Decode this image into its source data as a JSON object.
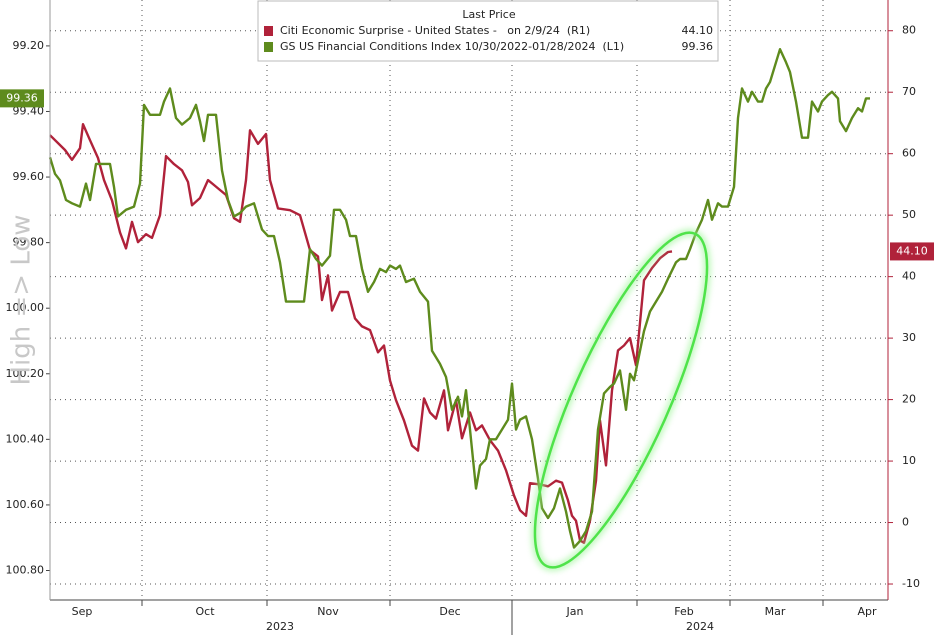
{
  "chart_data": {
    "type": "line",
    "y_label": "High => Low",
    "legend_title": "Last Price",
    "grid": true,
    "xlim": [
      0,
      83.8
    ],
    "xticks": [
      {
        "value": 3.2,
        "label": "Sep"
      },
      {
        "value": 15.5,
        "label": "Oct"
      },
      {
        "value": 27.8,
        "label": "Nov"
      },
      {
        "value": 40,
        "label": "Dec"
      },
      {
        "value": 52.5,
        "label": "Jan"
      },
      {
        "value": 63.4,
        "label": "Feb"
      },
      {
        "value": 72.5,
        "label": "Mar"
      },
      {
        "value": 81.7,
        "label": "Apr"
      }
    ],
    "xgrid": [
      9.2,
      21.7,
      34,
      46.2,
      58.7,
      68,
      77.3
    ],
    "year_ticks": [
      {
        "value": 23,
        "label": "2023"
      },
      {
        "value": 65,
        "label": "2024"
      }
    ],
    "year_split": 46.2,
    "ylim": [
      100.89,
      99.06
    ],
    "yticks": [
      {
        "value": 99.2,
        "label": "99.20"
      },
      {
        "value": 99.4,
        "label": "99.40"
      },
      {
        "value": 99.6,
        "label": "99.60"
      },
      {
        "value": 99.8,
        "label": "99.80"
      },
      {
        "value": 100,
        "label": "100.00"
      },
      {
        "value": 100.2,
        "label": "100.20"
      },
      {
        "value": 100.4,
        "label": "100.40"
      },
      {
        "value": 100.6,
        "label": "100.60"
      },
      {
        "value": 100.8,
        "label": "100.80"
      }
    ],
    "y2lim": [
      -12.6,
      85
    ],
    "y2ticks": [
      -10,
      0,
      10,
      20,
      30,
      40,
      50,
      60,
      70,
      80
    ],
    "series": [
      {
        "name": "Citi Economic Surprise - United States -   on 2/9/24  (R1)",
        "color": "#b0223a",
        "axis": "y2",
        "last_label": "44.10",
        "x": [
          0,
          1.5,
          2.2,
          3,
          3.3,
          4,
          4.8,
          5.4,
          6.2,
          7,
          7.6,
          8.2,
          8.8,
          9.6,
          10.2,
          11,
          11.6,
          12.4,
          13.2,
          13.8,
          14.2,
          15,
          15.8,
          16.4,
          17,
          17.6,
          18.4,
          19,
          19.6,
          20,
          20.8,
          21.6,
          22,
          22.8,
          24,
          25,
          26,
          26.8,
          27.2,
          27.8,
          28.2,
          29,
          29.8,
          30.5,
          31.2,
          32,
          32.8,
          33.4,
          34,
          34.6,
          35.4,
          36.2,
          36.8,
          37.4,
          38,
          38.6,
          39.4,
          39.8,
          40.6,
          41.2,
          42,
          42.6,
          43.2,
          44,
          44.8,
          45.6,
          46.4,
          47,
          47.6,
          48,
          49,
          49.8,
          50.6,
          51.2,
          51.8,
          52.2,
          52.6,
          53,
          53.4,
          54,
          54.6,
          55,
          55.6,
          56.2,
          56.8,
          57.4,
          58,
          58.6,
          59.4,
          60.2,
          61,
          61.8,
          62.2
        ],
        "values": [
          63.0,
          60.6,
          59.0,
          60.9,
          64.8,
          62.2,
          59.3,
          55.7,
          52.4,
          47.2,
          44.6,
          48.9,
          45.6,
          46.9,
          46.3,
          50.0,
          59.6,
          58.3,
          57.3,
          55.4,
          51.6,
          52.8,
          55.7,
          54.9,
          54.1,
          53.3,
          49.5,
          48.9,
          55.7,
          63.8,
          61.6,
          63.2,
          55.7,
          51.1,
          50.8,
          50.0,
          44.3,
          43.3,
          36.2,
          40.2,
          34.5,
          37.5,
          37.5,
          33.2,
          31.9,
          31.3,
          27.7,
          28.8,
          23.1,
          19.9,
          16.6,
          12.5,
          11.7,
          20.2,
          17.9,
          16.9,
          21.5,
          15.0,
          19.9,
          13.7,
          17.9,
          15.0,
          15.8,
          13.4,
          11.7,
          8.5,
          4.4,
          2.0,
          1.1,
          6.4,
          6.2,
          5.9,
          6.8,
          6.5,
          3.6,
          1.1,
          0.3,
          -2.9,
          -3.3,
          0.3,
          6.8,
          16.6,
          9.3,
          21.5,
          28.0,
          28.8,
          30.0,
          25.6,
          39.4,
          41.4,
          43.0,
          44.0,
          44.1
        ]
      },
      {
        "name": "GS US Financial Conditions Index 10/30/2022-01/28/2024  (L1)",
        "color": "#5e8b1d",
        "axis": "y",
        "last_label": "99.36",
        "x": [
          0,
          0.5,
          1,
          1.6,
          2.2,
          3,
          3.6,
          4,
          4.6,
          5.4,
          6,
          6.4,
          6.8,
          7.6,
          8.4,
          9,
          9.4,
          10,
          11,
          11.4,
          12,
          12.6,
          13.2,
          14,
          14.6,
          15,
          15.4,
          15.8,
          16.6,
          17.2,
          17.8,
          18.4,
          19,
          19.6,
          20.4,
          21.2,
          21.8,
          22.4,
          23,
          23.6,
          24.2,
          24.8,
          25.4,
          26,
          26.6,
          27.2,
          28,
          28.4,
          29,
          29.6,
          30,
          30.6,
          31.2,
          31.8,
          32.4,
          33,
          33.6,
          34,
          34.6,
          35,
          35.6,
          36.4,
          37,
          37.8,
          38.2,
          39,
          39.6,
          40.2,
          40.8,
          41.2,
          41.6,
          42.2,
          42.6,
          43,
          43.6,
          44,
          44.6,
          45.2,
          45.8,
          46.2,
          46.6,
          47,
          47.6,
          48.2,
          48.8,
          49.2,
          49.8,
          50.4,
          51,
          51.6,
          52,
          52.4,
          53,
          53.6,
          54.2,
          54.8,
          55.4,
          56,
          56.4,
          57,
          57.6,
          58,
          58.4,
          58.8,
          59.4,
          60,
          60.6,
          61.2,
          61.8,
          62.6,
          63,
          63.6,
          64,
          64.6,
          65.2,
          65.8,
          66.2,
          66.8,
          67.2,
          67.8,
          68.4,
          68.8,
          69.2,
          69.8,
          70.2,
          70.8,
          71.2,
          71.6,
          72,
          72.6,
          73,
          73.6,
          74,
          74.6,
          75.2,
          75.8,
          76.2,
          76.8,
          77.2,
          77.8,
          78.2,
          78.8,
          79,
          79.6,
          80.2,
          80.8,
          81.2,
          81.6,
          82
        ],
        "values": [
          99.54,
          99.59,
          99.61,
          99.67,
          99.68,
          99.69,
          99.62,
          99.67,
          99.56,
          99.56,
          99.56,
          99.63,
          99.72,
          99.7,
          99.69,
          99.62,
          99.38,
          99.41,
          99.41,
          99.37,
          99.33,
          99.42,
          99.44,
          99.42,
          99.38,
          99.43,
          99.49,
          99.41,
          99.41,
          99.58,
          99.67,
          99.72,
          99.71,
          99.69,
          99.68,
          99.76,
          99.78,
          99.78,
          99.86,
          99.98,
          99.98,
          99.98,
          99.98,
          99.82,
          99.85,
          99.87,
          99.84,
          99.7,
          99.7,
          99.73,
          99.78,
          99.78,
          99.88,
          99.95,
          99.92,
          99.88,
          99.89,
          99.87,
          99.88,
          99.87,
          99.92,
          99.91,
          99.95,
          99.98,
          100.13,
          100.17,
          100.21,
          100.31,
          100.27,
          100.33,
          100.25,
          100.43,
          100.55,
          100.48,
          100.46,
          100.4,
          100.4,
          100.37,
          100.34,
          100.23,
          100.37,
          100.34,
          100.33,
          100.4,
          100.52,
          100.61,
          100.64,
          100.61,
          100.55,
          100.62,
          100.68,
          100.73,
          100.71,
          100.68,
          100.62,
          100.37,
          100.26,
          100.24,
          100.23,
          100.19,
          100.31,
          100.2,
          100.22,
          100.16,
          100.07,
          100.01,
          99.98,
          99.95,
          99.91,
          99.86,
          99.85,
          99.85,
          99.82,
          99.77,
          99.73,
          99.67,
          99.73,
          99.68,
          99.69,
          99.69,
          99.63,
          99.42,
          99.33,
          99.37,
          99.34,
          99.37,
          99.37,
          99.33,
          99.31,
          99.25,
          99.21,
          99.25,
          99.28,
          99.37,
          99.48,
          99.48,
          99.37,
          99.4,
          99.37,
          99.35,
          99.34,
          99.36,
          99.43,
          99.46,
          99.42,
          99.39,
          99.4,
          99.36,
          99.36
        ]
      }
    ]
  }
}
